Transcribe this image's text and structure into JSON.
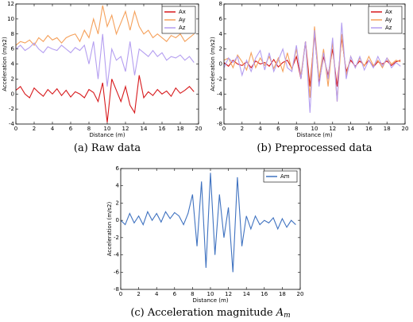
{
  "chart_data": [
    {
      "type": "line",
      "caption": "(a) Raw data",
      "x_label": "Distance (m)",
      "y_label": "Acceleration (m/s2)",
      "x": [
        0,
        0.5,
        1,
        1.5,
        2,
        2.5,
        3,
        3.5,
        4,
        4.5,
        5,
        5.5,
        6,
        6.5,
        7,
        7.5,
        8,
        8.5,
        9,
        9.5,
        10,
        10.5,
        11,
        11.5,
        12,
        12.5,
        13,
        13.5,
        14,
        14.5,
        15,
        15.5,
        16,
        16.5,
        17,
        17.5,
        18,
        18.5,
        19,
        19.5
      ],
      "series": [
        {
          "name": "Ax",
          "color": "#d7191c",
          "values": [
            0.5,
            1,
            0,
            -0.5,
            0.8,
            0.2,
            -0.3,
            0.6,
            0,
            0.7,
            -0.2,
            0.5,
            -0.4,
            0.3,
            0,
            -0.5,
            0.6,
            0.2,
            -1,
            1.5,
            -3.8,
            2,
            0.5,
            -1,
            1,
            -1.5,
            -2.5,
            2.5,
            -0.5,
            0.3,
            -0.2,
            0.6,
            0,
            0.4,
            -0.3,
            0.8,
            0.1,
            0.5,
            1,
            0.3
          ]
        },
        {
          "name": "Ay",
          "color": "#f5a05a",
          "values": [
            6.5,
            7,
            6.8,
            7.2,
            6.5,
            7.5,
            7,
            7.8,
            7.2,
            7.5,
            6.8,
            7.5,
            7.8,
            8,
            7,
            8.5,
            7.5,
            10,
            8,
            11.8,
            9,
            10.5,
            8,
            9.5,
            11,
            8.5,
            11,
            9,
            8,
            8.5,
            7.5,
            8,
            7.5,
            7,
            7.8,
            7.5,
            8,
            7,
            7.5,
            8
          ]
        },
        {
          "name": "Az",
          "color": "#b49ef0",
          "values": [
            6,
            6.5,
            5.8,
            6.2,
            6.8,
            6,
            5.5,
            6.3,
            6,
            5.8,
            6.5,
            6,
            5.5,
            6.2,
            5.8,
            6.5,
            4,
            7,
            2,
            8,
            1,
            6,
            4.5,
            5,
            3,
            7,
            2.5,
            6,
            5.5,
            5,
            5.8,
            5,
            5.5,
            4.5,
            5,
            4.8,
            5.2,
            4.5,
            5,
            4.2
          ]
        }
      ],
      "xlim": [
        0,
        20
      ],
      "xticks": [
        0,
        2,
        4,
        6,
        8,
        10,
        12,
        14,
        16,
        18,
        20
      ],
      "ylim": [
        -4,
        12
      ],
      "yticks": [
        -4,
        -2,
        0,
        2,
        4,
        6,
        8,
        10,
        12
      ],
      "legend": "upper right"
    },
    {
      "type": "line",
      "caption": "(b) Preprocessed data",
      "x_label": "Distance (m)",
      "y_label": "Acceleration (m/s2)",
      "x": [
        0,
        0.5,
        1,
        1.5,
        2,
        2.5,
        3,
        3.5,
        4,
        4.5,
        5,
        5.5,
        6,
        6.5,
        7,
        7.5,
        8,
        8.5,
        9,
        9.5,
        10,
        10.5,
        11,
        11.5,
        12,
        12.5,
        13,
        13.5,
        14,
        14.5,
        15,
        15.5,
        16,
        16.5,
        17,
        17.5,
        18,
        18.5,
        19,
        19.5
      ],
      "series": [
        {
          "name": "Ax",
          "color": "#d7191c",
          "values": [
            0.2,
            -0.3,
            0.5,
            0,
            -0.2,
            0.3,
            -0.5,
            0.4,
            0,
            0.2,
            -0.3,
            0.6,
            -0.4,
            0.2,
            0.5,
            -0.6,
            1,
            -2,
            3,
            -3,
            4,
            -2.5,
            1,
            -1.5,
            2,
            -3,
            3.5,
            -1,
            0.5,
            -0.3,
            0.4,
            -0.2,
            0.5,
            -0.4,
            0.3,
            0,
            0.4,
            -0.2,
            0.3,
            0.5
          ]
        },
        {
          "name": "Ay",
          "color": "#f5a05a",
          "values": [
            0.5,
            0.8,
            -0.5,
            1.2,
            0.3,
            -0.8,
            1.5,
            -0.5,
            0.8,
            -0.2,
            1,
            -0.6,
            0.8,
            -1,
            1.5,
            -0.8,
            2,
            -1.5,
            3,
            -4.5,
            5,
            -2,
            2,
            -3,
            3,
            -5,
            4,
            -1.5,
            1,
            -0.5,
            0.8,
            -0.3,
            1,
            -0.2,
            0.5,
            -0.5,
            0.8,
            0,
            0.5,
            0.3
          ]
        },
        {
          "name": "Az",
          "color": "#b49ef0",
          "values": [
            -0.5,
            0.8,
            0.2,
            1,
            -1.5,
            0.5,
            -1,
            0.8,
            1.8,
            -0.8,
            1.5,
            -1,
            0.5,
            2,
            -0.5,
            -1,
            2.5,
            -2,
            3,
            -6.5,
            4.5,
            -3,
            1.5,
            -2,
            3.5,
            -5,
            5.5,
            -2,
            1,
            -0.5,
            1,
            -0.8,
            0.5,
            -0.5,
            1,
            -0.3,
            0.8,
            -0.5,
            0.2,
            -0.3
          ]
        }
      ],
      "xlim": [
        0,
        20
      ],
      "xticks": [
        0,
        2,
        4,
        6,
        8,
        10,
        12,
        14,
        16,
        18,
        20
      ],
      "ylim": [
        -8,
        8
      ],
      "yticks": [
        -8,
        -6,
        -4,
        -2,
        0,
        2,
        4,
        6,
        8
      ],
      "legend": "upper right"
    },
    {
      "type": "line",
      "caption": "(c) Acceleration magnitude ",
      "caption_symbol": "A",
      "caption_subscript": "m",
      "x_label": "Distance (m)",
      "y_label": "Acceleration (m/s2)",
      "x": [
        0,
        0.5,
        1,
        1.5,
        2,
        2.5,
        3,
        3.5,
        4,
        4.5,
        5,
        5.5,
        6,
        6.5,
        7,
        7.5,
        8,
        8.5,
        9,
        9.5,
        10,
        10.5,
        11,
        11.5,
        12,
        12.5,
        13,
        13.5,
        14,
        14.5,
        15,
        15.5,
        16,
        16.5,
        17,
        17.5,
        18,
        18.5,
        19,
        19.5
      ],
      "series": [
        {
          "name": "Am",
          "color": "#3f72c0",
          "values": [
            0,
            -0.5,
            0.8,
            -0.3,
            0.5,
            -0.5,
            1,
            0,
            0.8,
            -0.2,
            1,
            0.2,
            0.9,
            0.5,
            -0.5,
            0.8,
            3,
            -3,
            4.5,
            -5.5,
            5.5,
            -4,
            3,
            -2,
            1.5,
            -6,
            5,
            -3,
            0.5,
            -1,
            0.5,
            -0.5,
            0,
            -0.3,
            0.3,
            -1,
            0.2,
            -0.8,
            0,
            -0.5
          ]
        }
      ],
      "xlim": [
        0,
        20
      ],
      "xticks": [
        0,
        2,
        4,
        6,
        8,
        10,
        12,
        14,
        16,
        18,
        20
      ],
      "ylim": [
        -8,
        6
      ],
      "yticks": [
        -8,
        -6,
        -4,
        -2,
        0,
        2,
        4,
        6
      ],
      "legend": "upper right"
    }
  ]
}
